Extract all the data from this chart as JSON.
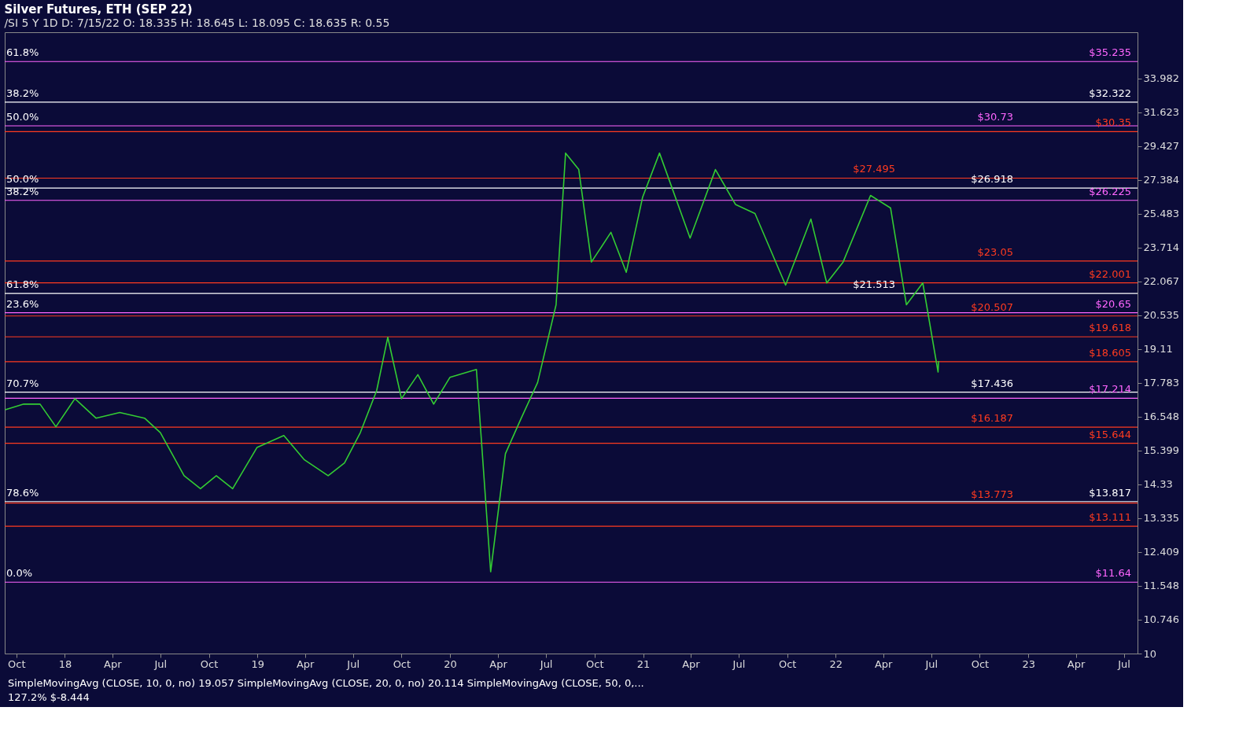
{
  "chart_data": {
    "type": "line",
    "title": "Silver Futures, ETH (SEP 22)",
    "subtitle": "/SI 5 Y 1D  D: 7/15/22  O: 18.335  H: 18.645  L: 18.095  C: 18.635  R: 0.55",
    "x": [
      "2017-09-10",
      "2017-10-15",
      "2017-11-15",
      "2017-12-15",
      "2018-01-20",
      "2018-03-01",
      "2018-04-15",
      "2018-06-01",
      "2018-07-01",
      "2018-08-15",
      "2018-09-15",
      "2018-10-15",
      "2018-11-15",
      "2018-12-31",
      "2019-02-20",
      "2019-03-31",
      "2019-05-15",
      "2019-06-15",
      "2019-07-15",
      "2019-08-15",
      "2019-09-05",
      "2019-10-01",
      "2019-11-01",
      "2019-12-01",
      "2020-01-01",
      "2020-02-20",
      "2020-03-18",
      "2020-04-15",
      "2020-05-15",
      "2020-06-15",
      "2020-07-20",
      "2020-08-07",
      "2020-09-01",
      "2020-09-25",
      "2020-11-01",
      "2020-11-30",
      "2020-12-31",
      "2021-02-01",
      "2021-03-31",
      "2021-05-18",
      "2021-06-25",
      "2021-08-01",
      "2021-09-28",
      "2021-11-15",
      "2021-12-15",
      "2022-01-15",
      "2022-03-08",
      "2022-04-15",
      "2022-05-15",
      "2022-06-15",
      "2022-07-14",
      "2022-07-15"
    ],
    "series": [
      {
        "color": "#33cc33",
        "values": [
          16.8,
          17.0,
          17.0,
          16.2,
          17.2,
          16.5,
          16.7,
          16.5,
          16.0,
          14.6,
          14.2,
          14.6,
          14.2,
          15.5,
          15.9,
          15.1,
          14.6,
          15.0,
          16.0,
          17.5,
          19.6,
          17.2,
          18.1,
          17.0,
          18.0,
          18.3,
          11.9,
          15.3,
          16.5,
          17.8,
          21.0,
          29.0,
          28.0,
          23.0,
          24.5,
          22.5,
          26.4,
          29.0,
          24.2,
          28.0,
          26.0,
          25.5,
          21.9,
          25.2,
          22.0,
          23.0,
          26.5,
          25.8,
          21.0,
          22.0,
          18.2,
          18.635
        ]
      }
    ],
    "log": true,
    "xlim": [
      "2017-09-09",
      "2023-07-27"
    ],
    "xticks": [
      {
        "value": "2017-10-01",
        "label": "Oct"
      },
      {
        "value": "2018-01-01",
        "label": "18"
      },
      {
        "value": "2018-04-01",
        "label": "Apr"
      },
      {
        "value": "2018-07-01",
        "label": "Jul"
      },
      {
        "value": "2018-10-01",
        "label": "Oct"
      },
      {
        "value": "2019-01-01",
        "label": "19"
      },
      {
        "value": "2019-04-01",
        "label": "Apr"
      },
      {
        "value": "2019-07-01",
        "label": "Jul"
      },
      {
        "value": "2019-10-01",
        "label": "Oct"
      },
      {
        "value": "2020-01-01",
        "label": "20"
      },
      {
        "value": "2020-04-01",
        "label": "Apr"
      },
      {
        "value": "2020-07-01",
        "label": "Jul"
      },
      {
        "value": "2020-10-01",
        "label": "Oct"
      },
      {
        "value": "2021-01-01",
        "label": "21"
      },
      {
        "value": "2021-04-01",
        "label": "Apr"
      },
      {
        "value": "2021-07-01",
        "label": "Jul"
      },
      {
        "value": "2021-10-01",
        "label": "Oct"
      },
      {
        "value": "2022-01-01",
        "label": "22"
      },
      {
        "value": "2022-04-01",
        "label": "Apr"
      },
      {
        "value": "2022-07-01",
        "label": "Jul"
      },
      {
        "value": "2022-10-01",
        "label": "Oct"
      },
      {
        "value": "2023-01-01",
        "label": "23"
      },
      {
        "value": "2023-04-01",
        "label": "Apr"
      },
      {
        "value": "2023-07-01",
        "label": "Jul"
      }
    ],
    "ylim": [
      10,
      37.5
    ],
    "yticks": [
      10,
      10.746,
      11.548,
      12.409,
      13.335,
      14.33,
      15.399,
      16.548,
      17.783,
      19.11,
      20.535,
      22.067,
      23.714,
      25.483,
      27.384,
      29.427,
      31.623,
      33.982
    ],
    "grid": false,
    "ref_lines": [
      {
        "axis": "y",
        "value": 35.235,
        "label": "$35.235",
        "color": "#ff66ff"
      },
      {
        "axis": "y",
        "value": 32.322,
        "label": "$32.322",
        "color": "#ffffff"
      },
      {
        "axis": "y",
        "value": 30.73,
        "label": "$30.73",
        "color": "#ff66ff"
      },
      {
        "axis": "y",
        "value": 30.35,
        "label": "$30.35",
        "color": "#ff3b1f"
      },
      {
        "axis": "y",
        "value": 27.495,
        "label": "$27.495",
        "color": "#ff3b1f"
      },
      {
        "axis": "y",
        "value": 26.918,
        "label": "$26.918",
        "color": "#ffffff"
      },
      {
        "axis": "y",
        "value": 26.225,
        "label": "$26.225",
        "color": "#ff66ff"
      },
      {
        "axis": "y",
        "value": 23.05,
        "label": "$23.05",
        "color": "#ff3b1f"
      },
      {
        "axis": "y",
        "value": 22.001,
        "label": "$22.001",
        "color": "#ff3b1f"
      },
      {
        "axis": "y",
        "value": 21.513,
        "label": "$21.513",
        "color": "#ffffff"
      },
      {
        "axis": "y",
        "value": 20.65,
        "label": "$20.65",
        "color": "#ff66ff"
      },
      {
        "axis": "y",
        "value": 20.507,
        "label": "$20.507",
        "color": "#ff3b1f"
      },
      {
        "axis": "y",
        "value": 19.618,
        "label": "$19.618",
        "color": "#ff3b1f"
      },
      {
        "axis": "y",
        "value": 18.605,
        "label": "$18.605",
        "color": "#ff3b1f"
      },
      {
        "axis": "y",
        "value": 17.436,
        "label": "$17.436",
        "color": "#ffffff"
      },
      {
        "axis": "y",
        "value": 17.214,
        "label": "$17.214",
        "color": "#ff66ff"
      },
      {
        "axis": "y",
        "value": 16.187,
        "label": "$16.187",
        "color": "#ff3b1f"
      },
      {
        "axis": "y",
        "value": 15.644,
        "label": "$15.644",
        "color": "#ff3b1f"
      },
      {
        "axis": "y",
        "value": 13.817,
        "label": "$13.817",
        "color": "#ffffff"
      },
      {
        "axis": "y",
        "value": 13.773,
        "label": "$13.773",
        "color": "#ff3b1f"
      },
      {
        "axis": "y",
        "value": 13.111,
        "label": "$13.111",
        "color": "#ff3b1f"
      },
      {
        "axis": "y",
        "value": 11.64,
        "label": "$11.64",
        "color": "#ff66ff"
      }
    ],
    "annotations": [
      {
        "text": "61.8%",
        "x": "2017-09-12",
        "y": 35.235
      },
      {
        "text": "38.2%",
        "x": "2017-09-12",
        "y": 32.322
      },
      {
        "text": "50.0%",
        "x": "2017-09-12",
        "y": 30.73
      },
      {
        "text": "50.0%",
        "x": "2017-09-12",
        "y": 26.918
      },
      {
        "text": "38.2%",
        "x": "2017-09-12",
        "y": 26.225
      },
      {
        "text": "61.8%",
        "x": "2017-09-12",
        "y": 21.513
      },
      {
        "text": "23.6%",
        "x": "2017-09-12",
        "y": 20.65
      },
      {
        "text": "70.7%",
        "x": "2017-09-12",
        "y": 17.436
      },
      {
        "text": "78.6%",
        "x": "2017-09-12",
        "y": 13.817
      },
      {
        "text": "0.0%",
        "x": "2017-09-12",
        "y": 11.64
      },
      "SimpleMovingAvg (CLOSE, 10, 0, no) 19.057   SimpleMovingAvg (CLOSE, 20, 0, no) 20.114   SimpleMovingAvg (CLOSE, 50, 0,...",
      "127.2%  $-8.444"
    ]
  }
}
